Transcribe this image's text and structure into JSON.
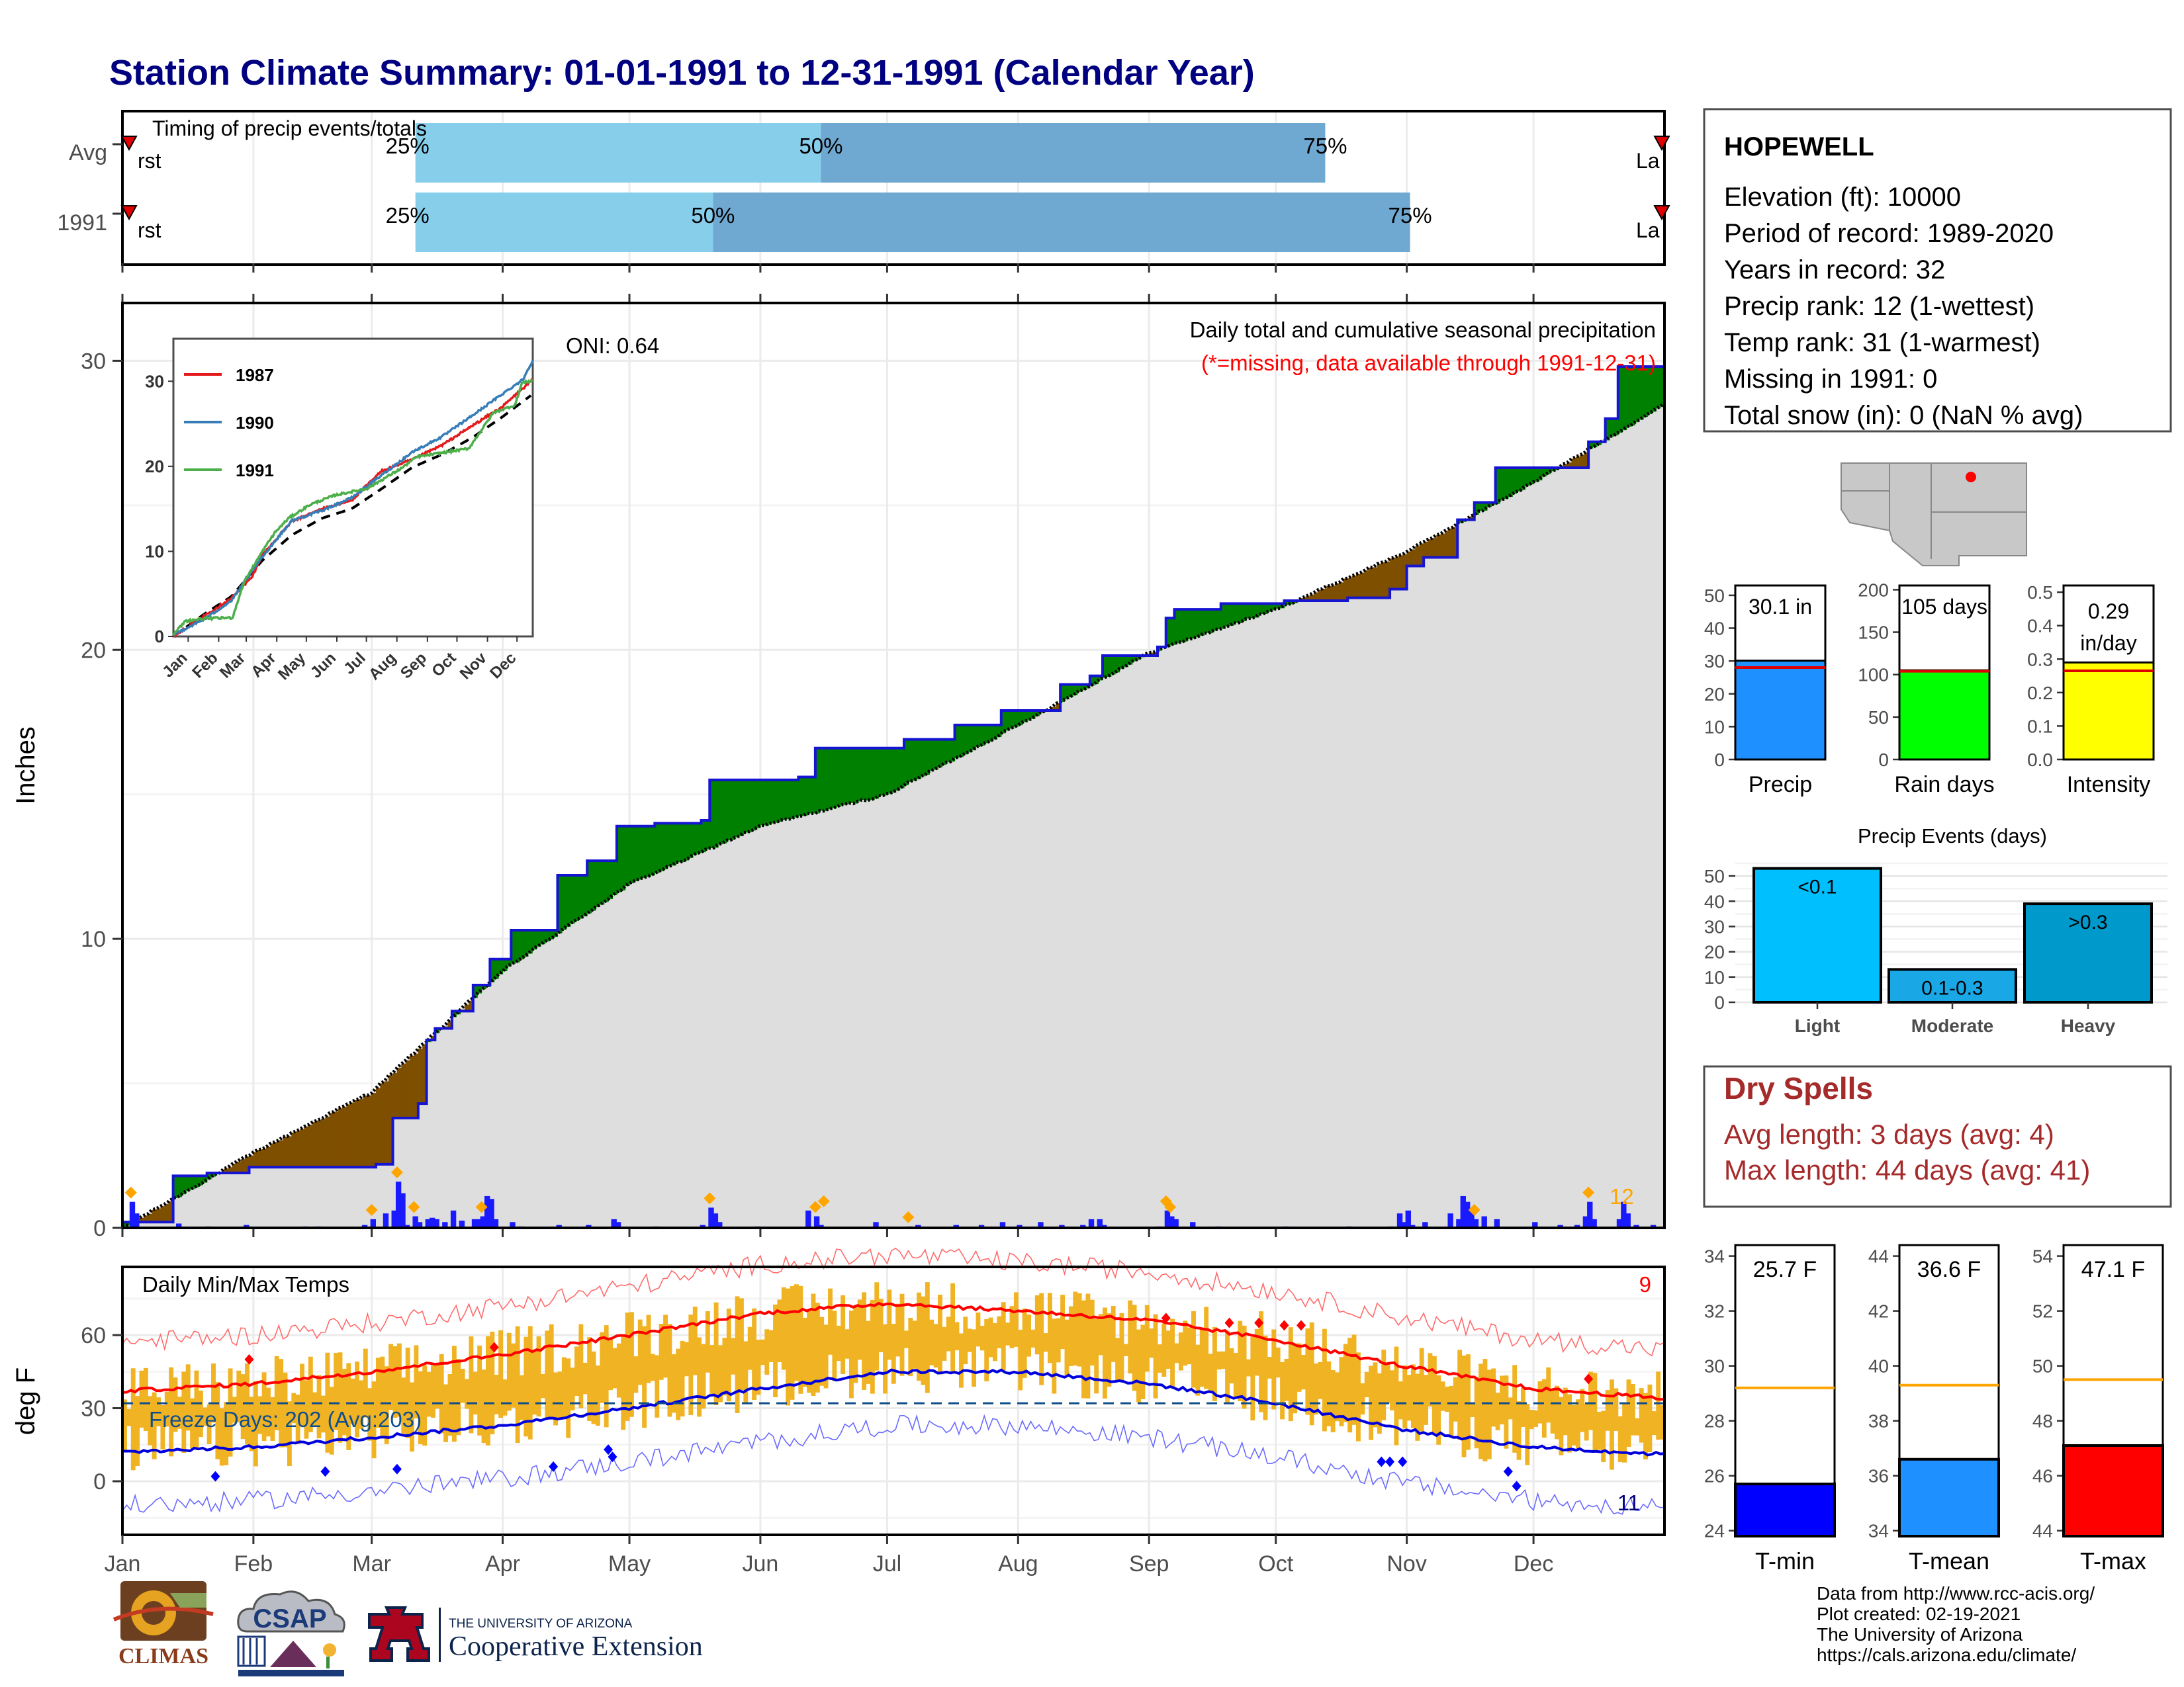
{
  "title": "Station Climate Summary: 01-01-1991 to 12-31-1991 (Calendar Year)",
  "timing": {
    "label": "Timing of precip events/totals",
    "rows": [
      {
        "label": "Avg",
        "p25": 0.19,
        "p50": 0.453,
        "p75": 0.78
      },
      {
        "label": "1991",
        "p25": 0.19,
        "p50": 0.383,
        "p75": 0.835
      }
    ],
    "first_label": "First",
    "last_label": "Last",
    "pct_labels": [
      "25%",
      "50%",
      "75%"
    ]
  },
  "precip": {
    "ylabel": "Inches",
    "caption1": "Daily total and cumulative seasonal precipitation",
    "caption2": "(*=missing, data available through 1991-12-31)",
    "oni": "ONI: 0.64",
    "count_label": "12",
    "ylim": [
      0,
      32
    ],
    "yticks": [
      "0",
      "10",
      "20",
      "30"
    ],
    "avg_cum_knots": [
      [
        0,
        0
      ],
      [
        31,
        2.6
      ],
      [
        59,
        4.7
      ],
      [
        90,
        8.9
      ],
      [
        120,
        11.9
      ],
      [
        151,
        13.9
      ],
      [
        181,
        15.0
      ],
      [
        212,
        17.4
      ],
      [
        243,
        19.9
      ],
      [
        273,
        21.4
      ],
      [
        304,
        23.4
      ],
      [
        334,
        25.8
      ],
      [
        365,
        28.5
      ]
    ],
    "obs_cum_knots": [
      [
        0,
        0.2
      ],
      [
        12,
        1.8
      ],
      [
        20,
        1.9
      ],
      [
        30,
        2.1
      ],
      [
        60,
        2.2
      ],
      [
        64,
        3.8
      ],
      [
        70,
        4.3
      ],
      [
        72,
        6.5
      ],
      [
        74,
        6.9
      ],
      [
        78,
        7.5
      ],
      [
        83,
        8.4
      ],
      [
        87,
        9.3
      ],
      [
        92,
        10.3
      ],
      [
        103,
        12.2
      ],
      [
        110,
        12.7
      ],
      [
        117,
        13.9
      ],
      [
        126,
        14.0
      ],
      [
        137,
        14.1
      ],
      [
        139,
        15.5
      ],
      [
        160,
        15.6
      ],
      [
        164,
        16.6
      ],
      [
        178,
        16.6
      ],
      [
        185,
        16.9
      ],
      [
        197,
        17.4
      ],
      [
        208,
        17.9
      ],
      [
        222,
        18.8
      ],
      [
        229,
        19.1
      ],
      [
        232,
        19.8
      ],
      [
        245,
        20.1
      ],
      [
        247,
        21.1
      ],
      [
        249,
        21.4
      ],
      [
        260,
        21.6
      ],
      [
        275,
        21.7
      ],
      [
        290,
        21.8
      ],
      [
        300,
        22.1
      ],
      [
        304,
        22.9
      ],
      [
        308,
        23.2
      ],
      [
        316,
        24.5
      ],
      [
        320,
        25.1
      ],
      [
        325,
        26.3
      ],
      [
        347,
        27.2
      ],
      [
        351,
        28.0
      ],
      [
        354,
        29.8
      ],
      [
        365,
        30.1
      ]
    ],
    "daily_precip": [
      [
        2,
        0.9
      ],
      [
        3,
        0.5
      ],
      [
        13,
        0.15
      ],
      [
        20,
        0.05
      ],
      [
        29,
        0.1
      ],
      [
        43,
        0.05
      ],
      [
        46,
        0.05
      ],
      [
        57,
        0.1
      ],
      [
        59,
        0.3
      ],
      [
        62,
        0.5
      ],
      [
        64,
        0.6
      ],
      [
        65,
        1.6
      ],
      [
        66,
        1.2
      ],
      [
        67,
        0.1
      ],
      [
        69,
        0.4
      ],
      [
        70,
        0.2
      ],
      [
        72,
        0.3
      ],
      [
        73,
        0.35
      ],
      [
        74,
        0.3
      ],
      [
        76,
        0.2
      ],
      [
        78,
        0.6
      ],
      [
        80,
        0.25
      ],
      [
        83,
        0.3
      ],
      [
        84,
        0.3
      ],
      [
        85,
        0.4
      ],
      [
        86,
        1.1
      ],
      [
        87,
        1.0
      ],
      [
        88,
        0.3
      ],
      [
        92,
        0.2
      ],
      [
        94,
        0.05
      ],
      [
        103,
        0.1
      ],
      [
        110,
        0.1
      ],
      [
        116,
        0.3
      ],
      [
        117,
        0.2
      ],
      [
        126,
        0.05
      ],
      [
        137,
        0.1
      ],
      [
        139,
        0.7
      ],
      [
        140,
        0.5
      ],
      [
        141,
        0.2
      ],
      [
        150,
        0.05
      ],
      [
        162,
        0.6
      ],
      [
        164,
        0.4
      ],
      [
        165,
        0.1
      ],
      [
        178,
        0.2
      ],
      [
        186,
        0.05
      ],
      [
        188,
        0.1
      ],
      [
        197,
        0.1
      ],
      [
        203,
        0.1
      ],
      [
        208,
        0.2
      ],
      [
        212,
        0.1
      ],
      [
        217,
        0.2
      ],
      [
        222,
        0.1
      ],
      [
        227,
        0.1
      ],
      [
        229,
        0.3
      ],
      [
        231,
        0.3
      ],
      [
        232,
        0.1
      ],
      [
        245,
        0.05
      ],
      [
        247,
        0.6
      ],
      [
        248,
        0.4
      ],
      [
        249,
        0.3
      ],
      [
        253,
        0.2
      ],
      [
        259,
        0.05
      ],
      [
        275,
        0.05
      ],
      [
        290,
        0.05
      ],
      [
        300,
        0.05
      ],
      [
        302,
        0.5
      ],
      [
        303,
        0.2
      ],
      [
        304,
        0.6
      ],
      [
        305,
        0.1
      ],
      [
        308,
        0.2
      ],
      [
        314,
        0.5
      ],
      [
        316,
        0.3
      ],
      [
        317,
        1.1
      ],
      [
        318,
        0.9
      ],
      [
        319,
        0.6
      ],
      [
        320,
        0.3
      ],
      [
        322,
        0.4
      ],
      [
        325,
        0.3
      ],
      [
        334,
        0.2
      ],
      [
        340,
        0.1
      ],
      [
        344,
        0.1
      ],
      [
        346,
        0.4
      ],
      [
        347,
        0.9
      ],
      [
        348,
        0.3
      ],
      [
        354,
        0.3
      ],
      [
        355,
        0.9
      ],
      [
        356,
        0.5
      ],
      [
        358,
        0.1
      ],
      [
        362,
        0.1
      ]
    ],
    "extreme_days": [
      2,
      59,
      65,
      69,
      85,
      139,
      164,
      166,
      186,
      247,
      248,
      320,
      347
    ],
    "inset": {
      "ylim": [
        0,
        35
      ],
      "yticks": [
        "0",
        "10",
        "20",
        "30"
      ],
      "months": [
        "Jan",
        "Feb",
        "Mar",
        "Apr",
        "May",
        "Jun",
        "Jul",
        "Aug",
        "Sep",
        "Oct",
        "Nov",
        "Dec"
      ],
      "series": [
        {
          "name": "1987",
          "color": "#e41a1c",
          "knots": [
            [
              0,
              0
            ],
            [
              31,
              2.4
            ],
            [
              59,
              4.5
            ],
            [
              80,
              7
            ],
            [
              90,
              9.5
            ],
            [
              120,
              13.5
            ],
            [
              151,
              15
            ],
            [
              181,
              16
            ],
            [
              212,
              19.5
            ],
            [
              243,
              20.8
            ],
            [
              273,
              22.5
            ],
            [
              304,
              24.8
            ],
            [
              334,
              27
            ],
            [
              365,
              30.2
            ]
          ]
        },
        {
          "name": "1990",
          "color": "#377eb8",
          "knots": [
            [
              0,
              0.2
            ],
            [
              31,
              2.0
            ],
            [
              59,
              4.2
            ],
            [
              90,
              9.3
            ],
            [
              120,
              13.6
            ],
            [
              151,
              14.8
            ],
            [
              181,
              16.3
            ],
            [
              212,
              19.0
            ],
            [
              243,
              21.7
            ],
            [
              273,
              23.5
            ],
            [
              304,
              26.0
            ],
            [
              334,
              28.5
            ],
            [
              355,
              30.2
            ],
            [
              365,
              32.5
            ]
          ]
        },
        {
          "name": "1991",
          "color": "#4daf4a",
          "knots": [
            [
              0,
              0.2
            ],
            [
              12,
              1.8
            ],
            [
              31,
              2.1
            ],
            [
              60,
              2.2
            ],
            [
              72,
              6.5
            ],
            [
              92,
              10.3
            ],
            [
              103,
              12.2
            ],
            [
              117,
              13.9
            ],
            [
              139,
              15.5
            ],
            [
              164,
              16.6
            ],
            [
              197,
              17.4
            ],
            [
              232,
              19.8
            ],
            [
              247,
              21.1
            ],
            [
              300,
              22.1
            ],
            [
              325,
              26.3
            ],
            [
              347,
              27.2
            ],
            [
              354,
              29.8
            ],
            [
              365,
              30.1
            ]
          ]
        }
      ]
    }
  },
  "temps": {
    "ylabel": "deg F",
    "title": "Daily Min/Max Temps",
    "freeze": "Freeze Days: 202 (Avg:203)",
    "count_hi": "9",
    "count_lo": "11",
    "ylim": [
      -22,
      88
    ],
    "yticks": [
      "0",
      "30",
      "60"
    ],
    "freeze_line": 32,
    "months": [
      "Jan",
      "Feb",
      "Mar",
      "Apr",
      "May",
      "Jun",
      "Jul",
      "Aug",
      "Sep",
      "Oct",
      "Nov",
      "Dec"
    ],
    "normal_max_knots": [
      [
        0,
        37
      ],
      [
        31,
        40
      ],
      [
        59,
        45
      ],
      [
        90,
        52
      ],
      [
        120,
        60
      ],
      [
        151,
        69
      ],
      [
        181,
        73
      ],
      [
        212,
        70
      ],
      [
        243,
        66
      ],
      [
        273,
        58
      ],
      [
        304,
        47
      ],
      [
        334,
        38
      ],
      [
        365,
        34
      ]
    ],
    "normal_min_knots": [
      [
        0,
        12
      ],
      [
        31,
        14
      ],
      [
        59,
        18
      ],
      [
        90,
        23
      ],
      [
        120,
        30
      ],
      [
        151,
        38
      ],
      [
        181,
        45
      ],
      [
        212,
        45
      ],
      [
        243,
        40
      ],
      [
        273,
        32
      ],
      [
        304,
        21
      ],
      [
        334,
        14
      ],
      [
        365,
        11
      ]
    ]
  },
  "station": {
    "name": "HOPEWELL",
    "lines": [
      "Elevation (ft): 10000",
      "Period of record: 1989-2020",
      "Years in record: 32",
      "Precip rank: 12 (1-wettest)",
      "Temp rank: 31 (1-warmest)",
      "Missing in 1991: 0",
      "Total snow (in): 0 (NaN % avg)"
    ]
  },
  "summary_bars": [
    {
      "label": "Precip",
      "value_text": "30.1 in",
      "value": 30.1,
      "avg": 28.0,
      "ymax": 53,
      "ticks": [
        0,
        10,
        20,
        30,
        40,
        50
      ],
      "tick_fmt": 0,
      "color": "#1e90ff"
    },
    {
      "label": "Rain days",
      "value_text": "105 days",
      "value": 105,
      "avg": 104,
      "ymax": 205,
      "ticks": [
        0,
        50,
        100,
        150,
        200
      ],
      "tick_fmt": 0,
      "color": "#00ff00"
    },
    {
      "label": "Intensity",
      "value_text": "0.29 in/day",
      "value": 0.29,
      "avg": 0.265,
      "ymax": 0.52,
      "ticks": [
        0,
        0.1,
        0.2,
        0.3,
        0.4,
        0.5
      ],
      "tick_fmt": 1,
      "color": "#ffff00"
    }
  ],
  "events": {
    "title": "Precip Events (days)",
    "categories": [
      "Light",
      "Moderate",
      "Heavy"
    ],
    "bar_labels": [
      "<0.1",
      "0.1-0.3",
      ">0.3"
    ],
    "values": [
      53,
      13,
      39
    ],
    "ylim": [
      0,
      55
    ],
    "yticks": [
      0,
      10,
      20,
      30,
      40,
      50
    ],
    "colors": [
      "#00bfff",
      "#1aa7e6",
      "#0099cc"
    ]
  },
  "dry_spells": {
    "title": "Dry Spells",
    "avg_length": "Avg length: 3 days (avg: 4)",
    "max_length": "Max length: 44 days (avg: 41)"
  },
  "temp_bars": [
    {
      "label": "T-min",
      "value_text": "25.7 F",
      "value": 25.7,
      "avg": 29.2,
      "ymin": 23.8,
      "ymax": 34.4,
      "ticks": [
        24,
        26,
        28,
        30,
        32,
        34
      ],
      "color": "#0000ff"
    },
    {
      "label": "T-mean",
      "value_text": "36.6 F",
      "value": 36.6,
      "avg": 39.3,
      "ymin": 33.8,
      "ymax": 44.4,
      "ticks": [
        34,
        36,
        38,
        40,
        42,
        44
      ],
      "color": "#1e90ff"
    },
    {
      "label": "T-max",
      "value_text": "47.1 F",
      "value": 47.1,
      "avg": 49.5,
      "ymin": 43.8,
      "ymax": 54.4,
      "ticks": [
        44,
        46,
        48,
        50,
        52,
        54
      ],
      "color": "#ff0000"
    }
  ],
  "credits": [
    "Data from http://www.rcc-acis.org/",
    "Plot created: 02-19-2021",
    "The University of Arizona",
    "https://cals.arizona.edu/climate/"
  ],
  "logos": {
    "climas": "CLIMAS",
    "csap": "CSAP",
    "ua_small": "THE UNIVERSITY OF ARIZONA",
    "ua_big": "Cooperative Extension"
  },
  "chart_data": [
    {
      "type": "bar",
      "title": "Timing of precip events/totals",
      "categories": [
        "Avg",
        "1991"
      ],
      "series": [
        {
          "name": "25%",
          "values": [
            0.19,
            0.19
          ]
        },
        {
          "name": "50%",
          "values": [
            0.453,
            0.383
          ]
        },
        {
          "name": "75%",
          "values": [
            0.78,
            0.835
          ]
        }
      ]
    },
    {
      "type": "area",
      "title": "Daily total and cumulative seasonal precipitation",
      "ylabel": "Inches",
      "ylim": [
        0,
        32
      ],
      "note": "(*=missing, data available through 1991-12-31)"
    },
    {
      "type": "line",
      "title": "Daily Min/Max Temps",
      "ylabel": "deg F",
      "ylim": [
        -22,
        88
      ]
    },
    {
      "type": "bar",
      "categories": [
        "Precip",
        "Rain days",
        "Intensity"
      ],
      "values": [
        30.1,
        105,
        0.29
      ]
    },
    {
      "type": "bar",
      "title": "Precip Events (days)",
      "categories": [
        "Light",
        "Moderate",
        "Heavy"
      ],
      "values": [
        53,
        13,
        39
      ]
    },
    {
      "type": "bar",
      "categories": [
        "T-min",
        "T-mean",
        "T-max"
      ],
      "values": [
        25.7,
        36.6,
        47.1
      ]
    }
  ]
}
